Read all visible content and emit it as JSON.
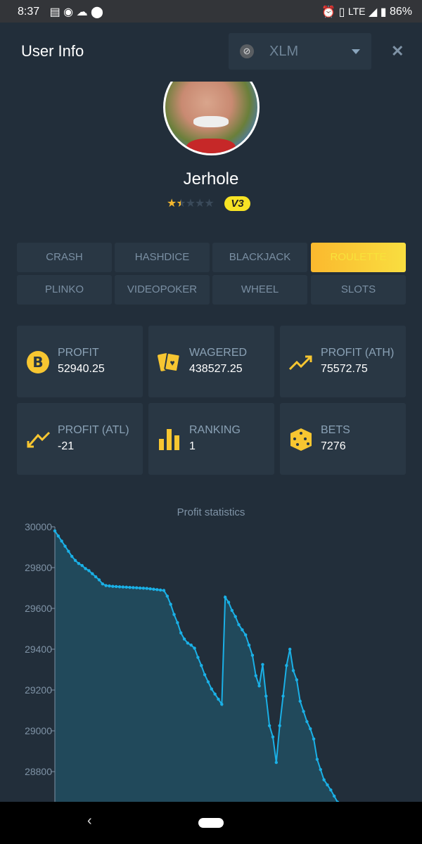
{
  "status_bar": {
    "time": "8:37",
    "network": "LTE",
    "battery": "86%"
  },
  "header": {
    "title": "User Info",
    "currency": "XLM",
    "currency_icon": "stellar-icon",
    "close_icon": "close-icon"
  },
  "profile": {
    "username": "Jerhole",
    "rating": 1.5,
    "rating_max": 5,
    "vip_badge": "V3"
  },
  "tabs": [
    {
      "label": "CRASH"
    },
    {
      "label": "HASHDICE"
    },
    {
      "label": "BLACKJACK"
    },
    {
      "label": "ROULETTE",
      "active": true
    },
    {
      "label": "PLINKO"
    },
    {
      "label": "VIDEOPOKER"
    },
    {
      "label": "WHEEL"
    },
    {
      "label": "SLOTS"
    }
  ],
  "stats": [
    {
      "label": "PROFIT",
      "value": "52940.25",
      "icon": "bitcoin-icon"
    },
    {
      "label": "WAGERED",
      "value": "438527.25",
      "icon": "cards-icon"
    },
    {
      "label": "PROFIT (ATH)",
      "value": "75572.75",
      "icon": "trend-up-icon"
    },
    {
      "label": "PROFIT (ATL)",
      "value": "-21",
      "icon": "trend-down-icon"
    },
    {
      "label": "RANKING",
      "value": "1",
      "icon": "bar-chart-icon"
    },
    {
      "label": "BETS",
      "value": "7276",
      "icon": "dice-icon"
    }
  ],
  "colors": {
    "accent": "#f7c631",
    "line": "#1ab0e6",
    "fill": "#21495b",
    "background": "#222e3a",
    "card": "#293744"
  },
  "chart_data": {
    "type": "area",
    "title": "Profit statistics",
    "xlabel": "",
    "ylabel": "",
    "ylim": [
      28652,
      30000
    ],
    "yticks": [
      "30000",
      "29800",
      "29600",
      "29400",
      "29200",
      "29000",
      "28800"
    ],
    "grid": false,
    "values": [
      29980,
      29955,
      29930,
      29905,
      29880,
      29855,
      29835,
      29820,
      29810,
      29795,
      29785,
      29770,
      29755,
      29740,
      29720,
      29712,
      29710,
      29708,
      29707,
      29706,
      29705,
      29704,
      29703,
      29702,
      29701,
      29700,
      29699,
      29698,
      29696,
      29694,
      29692,
      29690,
      29688,
      29660,
      29620,
      29570,
      29530,
      29480,
      29450,
      29430,
      29420,
      29405,
      29360,
      29320,
      29275,
      29240,
      29205,
      29180,
      29155,
      29130,
      29655,
      29630,
      29590,
      29560,
      29520,
      29495,
      29470,
      29420,
      29370,
      29270,
      29220,
      29325,
      29170,
      29025,
      28970,
      28845,
      29025,
      29170,
      29320,
      29400,
      29295,
      29250,
      29145,
      29095,
      29045,
      29010,
      28960,
      28860,
      28810,
      28760,
      28735,
      28710,
      28680,
      28650
    ]
  }
}
